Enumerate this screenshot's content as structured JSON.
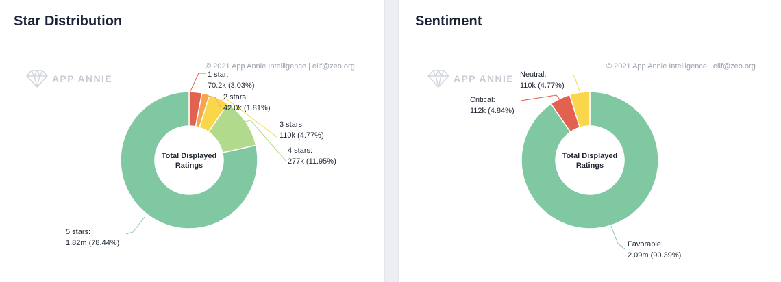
{
  "watermark": "APP ANNIE",
  "copyright": "© 2021 App Annie Intelligence | elif@zeo.org",
  "center_label": [
    "Total Displayed",
    "Ratings"
  ],
  "colors": {
    "red": "#e2614f",
    "orange": "#f3a54f",
    "yellow": "#fad74a",
    "light_green": "#b2da8d",
    "green": "#80c8a2"
  },
  "chart_data": [
    {
      "type": "pie",
      "title": "Star Distribution",
      "center_label": "Total Displayed Ratings",
      "slices": [
        {
          "name": "1 star",
          "value_text": "70.2k (3.03%)",
          "value": 70200,
          "percent": 3.03,
          "color": "#e2614f"
        },
        {
          "name": "2 stars",
          "value_text": "42.0k (1.81%)",
          "value": 42000,
          "percent": 1.81,
          "color": "#f3a54f"
        },
        {
          "name": "3 stars",
          "value_text": "110k (4.77%)",
          "value": 110000,
          "percent": 4.77,
          "color": "#fad74a"
        },
        {
          "name": "4 stars",
          "value_text": "277k (11.95%)",
          "value": 277000,
          "percent": 11.95,
          "color": "#b2da8d"
        },
        {
          "name": "5 stars",
          "value_text": "1.82m (78.44%)",
          "value": 1820000,
          "percent": 78.44,
          "color": "#80c8a2"
        }
      ]
    },
    {
      "type": "pie",
      "title": "Sentiment",
      "center_label": "Total Displayed Ratings",
      "slices": [
        {
          "name": "Favorable",
          "value_text": "2.09m (90.39%)",
          "value": 2090000,
          "percent": 90.39,
          "color": "#80c8a2"
        },
        {
          "name": "Critical",
          "value_text": "112k (4.84%)",
          "value": 112000,
          "percent": 4.84,
          "color": "#e2614f"
        },
        {
          "name": "Neutral",
          "value_text": "110k (4.77%)",
          "value": 110000,
          "percent": 4.77,
          "color": "#fad74a"
        }
      ]
    }
  ]
}
